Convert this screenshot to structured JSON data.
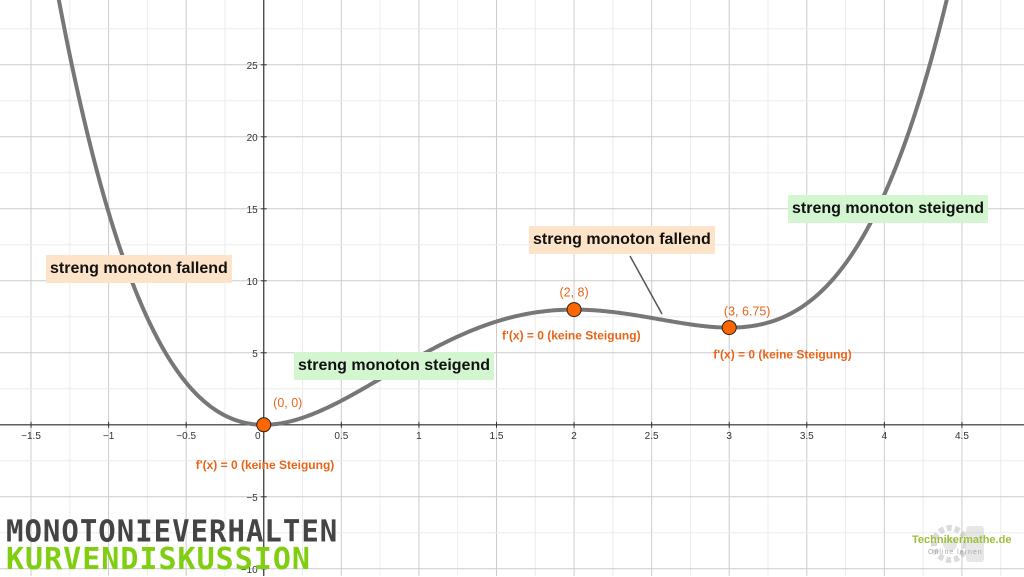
{
  "chart_data": {
    "type": "line",
    "title": "",
    "xlabel": "",
    "ylabel": "",
    "xlim": [
      -1.7,
      4.9
    ],
    "ylim": [
      -10.5,
      29.5
    ],
    "grid": true,
    "function": {
      "coefficients_descending": [
        0.75,
        -5,
        9,
        0,
        0
      ],
      "color": "#777777"
    },
    "x_ticks": [
      -1.5,
      -1,
      -0.5,
      0,
      0.5,
      1,
      1.5,
      2,
      2.5,
      3,
      3.5,
      4,
      4.5
    ],
    "x_tick_labels": [
      "−1.5",
      "−1",
      "−0.5",
      "0",
      "0.5",
      "1",
      "1.5",
      "2",
      "2.5",
      "3",
      "3.5",
      "4",
      "4.5"
    ],
    "y_ticks": [
      -10,
      -5,
      5,
      10,
      15,
      20,
      25
    ],
    "y_tick_labels": [
      "−10",
      "−5",
      "5",
      "10",
      "15",
      "20",
      "25"
    ],
    "points": [
      {
        "x": 0,
        "y": 0,
        "label": "(0, 0)",
        "note": "f'(x) = 0 (keine Steigung)"
      },
      {
        "x": 2,
        "y": 8,
        "label": "(2, 8)",
        "note": "f'(x) = 0 (keine Steigung)"
      },
      {
        "x": 3,
        "y": 6.75,
        "label": "(3, 6.75)",
        "note": "f'(x) = 0 (keine Steigung)"
      }
    ],
    "point_color": "#ff6600",
    "annotations": [
      {
        "text": "streng monoton fallend",
        "kind": "fallend"
      },
      {
        "text": "streng monoton steigend",
        "kind": "steigend"
      },
      {
        "text": "streng monoton fallend",
        "kind": "fallend"
      },
      {
        "text": "streng monoton steigend",
        "kind": "steigend"
      }
    ]
  },
  "branding": {
    "title_line1": "MONOTONIEVERHALTEN",
    "title_line2": "KURVENDISKUSSION",
    "watermark": "Technikermathe.de",
    "watermark_sub": "Online lernen"
  },
  "colors": {
    "fallend_bg": "#fde4c8",
    "steigend_bg": "#d3f5d0",
    "title1": "#444444",
    "title2": "#7fcf10"
  }
}
